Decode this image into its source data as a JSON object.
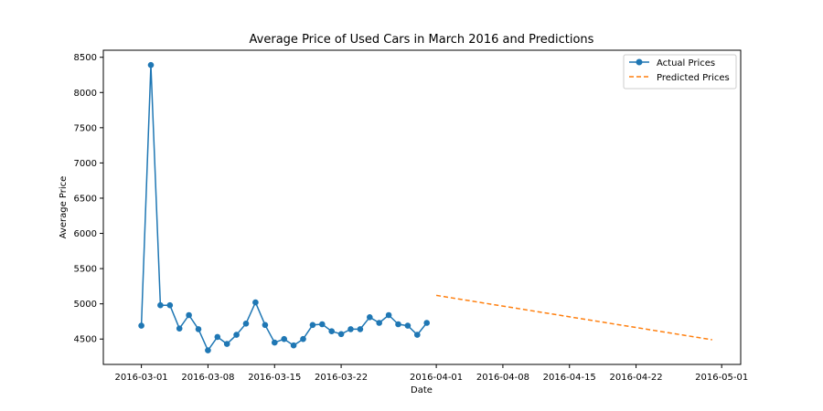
{
  "chart_data": {
    "type": "line",
    "title": "Average Price of Used Cars in March 2016 and Predictions",
    "xlabel": "Date",
    "ylabel": "Average Price",
    "xlim": [
      "2016-02-26",
      "2016-05-03"
    ],
    "ylim": [
      4140,
      8600
    ],
    "x_ticks": [
      "2016-03-01",
      "2016-03-08",
      "2016-03-15",
      "2016-03-22",
      "2016-04-01",
      "2016-04-08",
      "2016-04-15",
      "2016-04-22",
      "2016-05-01"
    ],
    "y_ticks": [
      4500,
      5000,
      5500,
      6000,
      6500,
      7000,
      7500,
      8000,
      8500
    ],
    "grid": false,
    "legend_position": "top-right",
    "series": [
      {
        "name": "Actual Prices",
        "style": "line-with-markers",
        "color": "#1f77b4",
        "points": [
          {
            "x": "2016-03-01",
            "y": 4690
          },
          {
            "x": "2016-03-02",
            "y": 8390
          },
          {
            "x": "2016-03-03",
            "y": 4980
          },
          {
            "x": "2016-03-04",
            "y": 4980
          },
          {
            "x": "2016-03-05",
            "y": 4650
          },
          {
            "x": "2016-03-06",
            "y": 4840
          },
          {
            "x": "2016-03-07",
            "y": 4640
          },
          {
            "x": "2016-03-08",
            "y": 4340
          },
          {
            "x": "2016-03-09",
            "y": 4530
          },
          {
            "x": "2016-03-10",
            "y": 4430
          },
          {
            "x": "2016-03-11",
            "y": 4560
          },
          {
            "x": "2016-03-12",
            "y": 4720
          },
          {
            "x": "2016-03-13",
            "y": 5020
          },
          {
            "x": "2016-03-14",
            "y": 4700
          },
          {
            "x": "2016-03-15",
            "y": 4450
          },
          {
            "x": "2016-03-16",
            "y": 4500
          },
          {
            "x": "2016-03-17",
            "y": 4410
          },
          {
            "x": "2016-03-18",
            "y": 4500
          },
          {
            "x": "2016-03-19",
            "y": 4700
          },
          {
            "x": "2016-03-20",
            "y": 4710
          },
          {
            "x": "2016-03-21",
            "y": 4610
          },
          {
            "x": "2016-03-22",
            "y": 4570
          },
          {
            "x": "2016-03-23",
            "y": 4640
          },
          {
            "x": "2016-03-24",
            "y": 4640
          },
          {
            "x": "2016-03-25",
            "y": 4810
          },
          {
            "x": "2016-03-26",
            "y": 4730
          },
          {
            "x": "2016-03-27",
            "y": 4840
          },
          {
            "x": "2016-03-28",
            "y": 4710
          },
          {
            "x": "2016-03-29",
            "y": 4690
          },
          {
            "x": "2016-03-30",
            "y": 4560
          },
          {
            "x": "2016-03-31",
            "y": 4730
          }
        ]
      },
      {
        "name": "Predicted Prices",
        "style": "dashed-line",
        "color": "#ff7f0e",
        "points": [
          {
            "x": "2016-04-01",
            "y": 5120
          },
          {
            "x": "2016-04-30",
            "y": 4490
          }
        ]
      }
    ]
  }
}
